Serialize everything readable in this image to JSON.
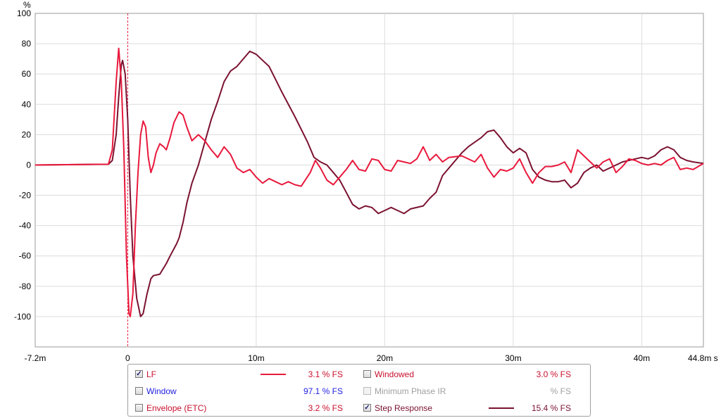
{
  "chart_data": {
    "type": "line",
    "ylabel": "%",
    "xlabel": "s",
    "xlim": [
      -0.0072,
      0.0448
    ],
    "ylim": [
      -120,
      100
    ],
    "x_ticks": [
      {
        "v": -0.0072,
        "label": "-7.2m"
      },
      {
        "v": 0,
        "label": "0"
      },
      {
        "v": 0.01,
        "label": "10m"
      },
      {
        "v": 0.02,
        "label": "20m"
      },
      {
        "v": 0.03,
        "label": "30m"
      },
      {
        "v": 0.04,
        "label": "40m"
      },
      {
        "v": 0.0448,
        "label": "44.8m s"
      }
    ],
    "y_ticks": [
      {
        "v": 100,
        "label": "100"
      },
      {
        "v": 80,
        "label": "80"
      },
      {
        "v": 60,
        "label": "60"
      },
      {
        "v": 40,
        "label": "40"
      },
      {
        "v": 20,
        "label": "20"
      },
      {
        "v": 0,
        "label": "0"
      },
      {
        "v": -20,
        "label": "-20"
      },
      {
        "v": -40,
        "label": "-40"
      },
      {
        "v": -60,
        "label": "-60"
      },
      {
        "v": -80,
        "label": "-80"
      },
      {
        "v": -100,
        "label": "-100"
      }
    ],
    "grid": true,
    "marker_x": 0,
    "series": [
      {
        "name": "LF",
        "color": "#e8193c",
        "points": [
          [
            -0.0072,
            0
          ],
          [
            -0.0015,
            0.5
          ],
          [
            -0.0012,
            10
          ],
          [
            -0.0009,
            55
          ],
          [
            -0.0007,
            77
          ],
          [
            -0.0005,
            55
          ],
          [
            -0.0003,
            10
          ],
          [
            -0.0001,
            -60
          ],
          [
            0.0001,
            -98
          ],
          [
            0.0002,
            -100
          ],
          [
            0.0004,
            -85
          ],
          [
            0.0006,
            -40
          ],
          [
            0.0008,
            -5
          ],
          [
            0.001,
            20
          ],
          [
            0.0012,
            29
          ],
          [
            0.0014,
            25
          ],
          [
            0.0016,
            5
          ],
          [
            0.0018,
            -5
          ],
          [
            0.002,
            0
          ],
          [
            0.0022,
            8
          ],
          [
            0.0025,
            14
          ],
          [
            0.0028,
            12
          ],
          [
            0.003,
            10
          ],
          [
            0.0033,
            18
          ],
          [
            0.0036,
            28
          ],
          [
            0.004,
            35
          ],
          [
            0.0043,
            33
          ],
          [
            0.0046,
            25
          ],
          [
            0.005,
            16
          ],
          [
            0.0055,
            20
          ],
          [
            0.006,
            16
          ],
          [
            0.0065,
            10
          ],
          [
            0.007,
            5
          ],
          [
            0.0075,
            12
          ],
          [
            0.008,
            7
          ],
          [
            0.0085,
            -2
          ],
          [
            0.009,
            -5
          ],
          [
            0.0095,
            -3
          ],
          [
            0.01,
            -8
          ],
          [
            0.0105,
            -12
          ],
          [
            0.011,
            -9
          ],
          [
            0.0115,
            -11
          ],
          [
            0.012,
            -13
          ],
          [
            0.0125,
            -11
          ],
          [
            0.013,
            -13
          ],
          [
            0.0135,
            -14
          ],
          [
            0.0142,
            -5
          ],
          [
            0.0146,
            3
          ],
          [
            0.015,
            -2
          ],
          [
            0.0155,
            -10
          ],
          [
            0.016,
            -13
          ],
          [
            0.0165,
            -8
          ],
          [
            0.017,
            -3
          ],
          [
            0.0175,
            3
          ],
          [
            0.018,
            -3
          ],
          [
            0.0185,
            -4
          ],
          [
            0.019,
            4
          ],
          [
            0.0195,
            3
          ],
          [
            0.02,
            -3
          ],
          [
            0.0205,
            -4
          ],
          [
            0.021,
            3
          ],
          [
            0.0215,
            2
          ],
          [
            0.022,
            1
          ],
          [
            0.0225,
            4
          ],
          [
            0.023,
            12
          ],
          [
            0.0235,
            3
          ],
          [
            0.024,
            7
          ],
          [
            0.0245,
            2
          ],
          [
            0.025,
            5
          ],
          [
            0.026,
            6
          ],
          [
            0.027,
            2
          ],
          [
            0.0275,
            7
          ],
          [
            0.028,
            -2
          ],
          [
            0.0285,
            -8
          ],
          [
            0.029,
            -3
          ],
          [
            0.0295,
            -4
          ],
          [
            0.03,
            -2
          ],
          [
            0.0305,
            4
          ],
          [
            0.031,
            -5
          ],
          [
            0.0315,
            -12
          ],
          [
            0.032,
            -5
          ],
          [
            0.0325,
            -1
          ],
          [
            0.033,
            -1
          ],
          [
            0.0335,
            0
          ],
          [
            0.034,
            2
          ],
          [
            0.0345,
            -5
          ],
          [
            0.035,
            10
          ],
          [
            0.0355,
            6
          ],
          [
            0.036,
            2
          ],
          [
            0.0365,
            -2
          ],
          [
            0.037,
            2
          ],
          [
            0.0375,
            4
          ],
          [
            0.038,
            -5
          ],
          [
            0.0385,
            -1
          ],
          [
            0.039,
            4
          ],
          [
            0.0395,
            3
          ],
          [
            0.04,
            1
          ],
          [
            0.0405,
            0
          ],
          [
            0.041,
            1
          ],
          [
            0.0415,
            0
          ],
          [
            0.042,
            3
          ],
          [
            0.0425,
            5
          ],
          [
            0.043,
            -3
          ],
          [
            0.0435,
            -2
          ],
          [
            0.044,
            -3
          ],
          [
            0.0448,
            1
          ]
        ]
      },
      {
        "name": "Step Response",
        "color": "#7b1230",
        "points": [
          [
            -0.0072,
            0
          ],
          [
            -0.0015,
            0.5
          ],
          [
            -0.0012,
            3
          ],
          [
            -0.0009,
            20
          ],
          [
            -0.0007,
            45
          ],
          [
            -0.0005,
            66
          ],
          [
            -0.0004,
            69
          ],
          [
            -0.0002,
            60
          ],
          [
            0,
            30
          ],
          [
            0.0002,
            -20
          ],
          [
            0.0004,
            -60
          ],
          [
            0.0007,
            -88
          ],
          [
            0.001,
            -100
          ],
          [
            0.0012,
            -98
          ],
          [
            0.0015,
            -85
          ],
          [
            0.0018,
            -75
          ],
          [
            0.002,
            -73
          ],
          [
            0.0025,
            -72
          ],
          [
            0.003,
            -65
          ],
          [
            0.0033,
            -60
          ],
          [
            0.0038,
            -52
          ],
          [
            0.004,
            -48
          ],
          [
            0.0043,
            -38
          ],
          [
            0.0046,
            -25
          ],
          [
            0.005,
            -12
          ],
          [
            0.0055,
            0
          ],
          [
            0.006,
            15
          ],
          [
            0.0065,
            30
          ],
          [
            0.007,
            42
          ],
          [
            0.0075,
            55
          ],
          [
            0.008,
            62
          ],
          [
            0.0085,
            65
          ],
          [
            0.009,
            70
          ],
          [
            0.0095,
            75
          ],
          [
            0.01,
            73
          ],
          [
            0.011,
            65
          ],
          [
            0.012,
            48
          ],
          [
            0.013,
            32
          ],
          [
            0.014,
            15
          ],
          [
            0.0145,
            5
          ],
          [
            0.015,
            2
          ],
          [
            0.0155,
            0
          ],
          [
            0.016,
            -5
          ],
          [
            0.0165,
            -10
          ],
          [
            0.017,
            -18
          ],
          [
            0.0175,
            -26
          ],
          [
            0.018,
            -29
          ],
          [
            0.0185,
            -27
          ],
          [
            0.019,
            -28
          ],
          [
            0.0195,
            -32
          ],
          [
            0.02,
            -30
          ],
          [
            0.0205,
            -28
          ],
          [
            0.021,
            -30
          ],
          [
            0.0215,
            -32
          ],
          [
            0.022,
            -29
          ],
          [
            0.023,
            -27
          ],
          [
            0.0235,
            -22
          ],
          [
            0.024,
            -18
          ],
          [
            0.0245,
            -7
          ],
          [
            0.025,
            -2
          ],
          [
            0.0255,
            3
          ],
          [
            0.026,
            8
          ],
          [
            0.0265,
            12
          ],
          [
            0.027,
            15
          ],
          [
            0.0275,
            18
          ],
          [
            0.028,
            22
          ],
          [
            0.0285,
            23
          ],
          [
            0.029,
            18
          ],
          [
            0.0295,
            12
          ],
          [
            0.03,
            8
          ],
          [
            0.0305,
            11
          ],
          [
            0.031,
            8
          ],
          [
            0.0315,
            -3
          ],
          [
            0.032,
            -8
          ],
          [
            0.0325,
            -10
          ],
          [
            0.033,
            -11
          ],
          [
            0.0335,
            -11
          ],
          [
            0.034,
            -10
          ],
          [
            0.0345,
            -15
          ],
          [
            0.035,
            -12
          ],
          [
            0.0355,
            -5
          ],
          [
            0.036,
            -2
          ],
          [
            0.0365,
            0
          ],
          [
            0.037,
            -4
          ],
          [
            0.0375,
            -2
          ],
          [
            0.038,
            0
          ],
          [
            0.0385,
            2
          ],
          [
            0.039,
            3
          ],
          [
            0.0395,
            4
          ],
          [
            0.04,
            5
          ],
          [
            0.0405,
            4
          ],
          [
            0.041,
            6
          ],
          [
            0.0415,
            10
          ],
          [
            0.042,
            12
          ],
          [
            0.0425,
            10
          ],
          [
            0.043,
            5
          ],
          [
            0.0435,
            3
          ],
          [
            0.044,
            2
          ],
          [
            0.0448,
            1
          ]
        ]
      }
    ]
  },
  "legend": {
    "items": [
      {
        "label": "LF",
        "checked": true,
        "enabled": true,
        "color": "#c8102e",
        "has_line": true,
        "line_color": "#e8193c",
        "value": "3.1 % FS",
        "value_color": "#c8102e"
      },
      {
        "label": "Window",
        "checked": false,
        "enabled": true,
        "color": "#1f1fe0",
        "has_line": false,
        "value": "97.1 % FS",
        "value_color": "#1f1fe0"
      },
      {
        "label": "Envelope (ETC)",
        "checked": false,
        "enabled": true,
        "color": "#c8102e",
        "has_line": false,
        "value": "3.2 % FS",
        "value_color": "#c8102e"
      },
      {
        "label": "Windowed",
        "checked": false,
        "enabled": true,
        "color": "#c8102e",
        "has_line": false,
        "value": "3.0 % FS",
        "value_color": "#c8102e"
      },
      {
        "label": "Minimum Phase IR",
        "checked": false,
        "enabled": false,
        "color": "#a0a0a0",
        "has_line": false,
        "value": "% FS",
        "value_color": "#a0a0a0"
      },
      {
        "label": "Step Response",
        "checked": true,
        "enabled": true,
        "color": "#7b1230",
        "has_line": true,
        "line_color": "#7b1230",
        "value": "15.4 % FS",
        "value_color": "#7b1230"
      }
    ]
  }
}
